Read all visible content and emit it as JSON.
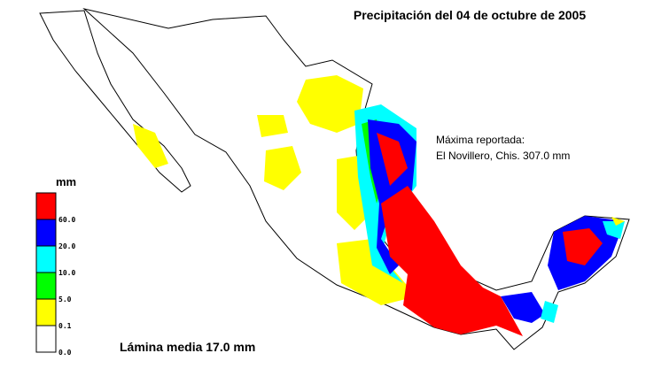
{
  "title": "Precipitación del 04 de octubre de 2005",
  "annotation": [
    "Máxima reportada:",
    "El Novillero, Chis. 307.0 mm"
  ],
  "legend": {
    "unit": "mm",
    "items": [
      {
        "color": "#ff0000",
        "label": "60.0"
      },
      {
        "color": "#0000ff",
        "label": "20.0"
      },
      {
        "color": "#00ffff",
        "label": "10.0"
      },
      {
        "color": "#00ff00",
        "label": "5.0"
      },
      {
        "color": "#ffff00",
        "label": "0.1"
      },
      {
        "color": "#ffffff",
        "label": "0.0"
      }
    ]
  },
  "footer": "Lámina media 17.0 mm"
}
